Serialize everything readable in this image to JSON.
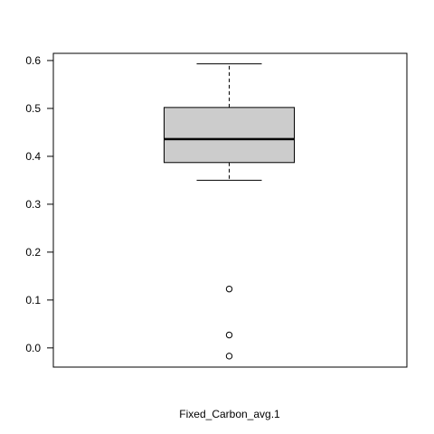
{
  "chart_data": {
    "type": "boxplot",
    "title": "",
    "xlabel": "Fixed_Carbon_avg.1",
    "ylabel": "",
    "ylim": [
      -0.04,
      0.615
    ],
    "yticks": [
      0.0,
      0.1,
      0.2,
      0.3,
      0.4,
      0.5,
      0.6
    ],
    "ytick_labels": [
      "0.0",
      "0.1",
      "0.2",
      "0.3",
      "0.4",
      "0.5",
      "0.6"
    ],
    "grid": false,
    "series": [
      {
        "whisker_low": 0.35,
        "q1": 0.387,
        "median": 0.436,
        "q3": 0.502,
        "whisker_high": 0.593,
        "outliers": [
          0.123,
          0.027,
          -0.017
        ]
      }
    ]
  },
  "colors": {
    "box_fill": "#cccccc",
    "stroke": "#000000",
    "background": "#ffffff"
  }
}
